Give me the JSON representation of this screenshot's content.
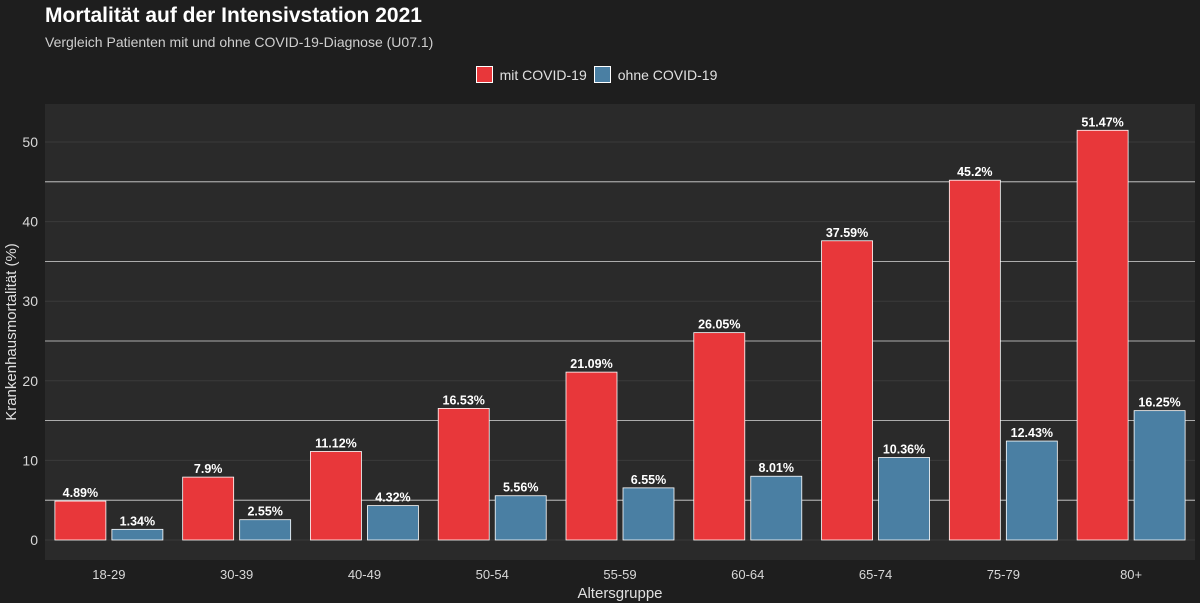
{
  "chart_data": {
    "type": "bar",
    "title": "Mortalität auf der Intensivstation 2021",
    "subtitle": "Vergleich Patienten mit und ohne COVID-19-Diagnose (U07.1)",
    "xlabel": "Altersgruppe",
    "ylabel": "Krankenhausmortalität (%)",
    "ylim": [
      0,
      53
    ],
    "yticks": [
      "0",
      "10",
      "20",
      "30",
      "40",
      "50"
    ],
    "grid": true,
    "legend_position": "top-center",
    "categories": [
      "18-29",
      "30-39",
      "40-49",
      "50-54",
      "55-59",
      "60-64",
      "65-74",
      "75-79",
      "80+"
    ],
    "series": [
      {
        "name": "mit COVID-19",
        "color": "#e8373a",
        "values": [
          4.89,
          7.9,
          11.12,
          16.53,
          21.09,
          26.05,
          37.59,
          45.2,
          51.47
        ],
        "labels": [
          "4.89%",
          "7.9%",
          "11.12%",
          "16.53%",
          "21.09%",
          "26.05%",
          "37.59%",
          "45.2%",
          "51.47%"
        ]
      },
      {
        "name": "ohne COVID-19",
        "color": "#4a7fa3",
        "values": [
          1.34,
          2.55,
          4.32,
          5.56,
          6.55,
          8.01,
          10.36,
          12.43,
          16.25
        ],
        "labels": [
          "1.34%",
          "2.55%",
          "4.32%",
          "5.56%",
          "6.55%",
          "8.01%",
          "10.36%",
          "12.43%",
          "16.25%"
        ]
      }
    ]
  }
}
